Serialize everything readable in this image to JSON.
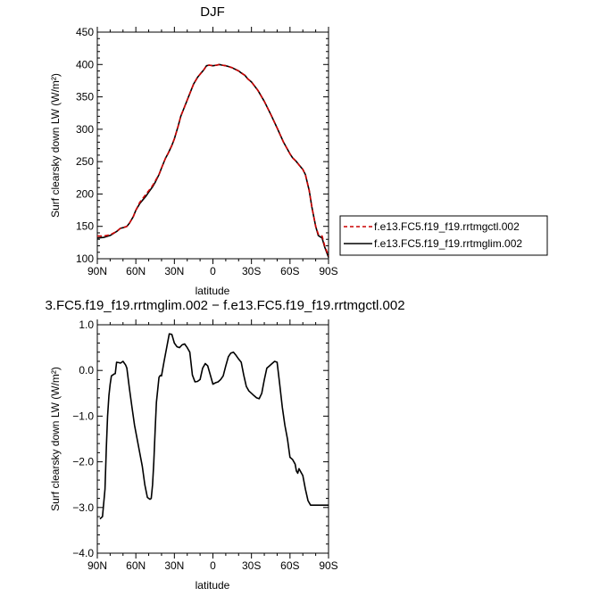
{
  "chart_data": [
    {
      "type": "line",
      "title": "DJF",
      "xlabel": "latitude",
      "ylabel": "Surf clearsky down LW (W/m²)",
      "ylim": [
        100,
        450
      ],
      "yticks": [
        "100",
        "150",
        "200",
        "250",
        "300",
        "350",
        "400",
        "450"
      ],
      "xlim": [
        90,
        -90
      ],
      "xticks": [
        "90N",
        "60N",
        "30N",
        "0",
        "30S",
        "60S",
        "90S"
      ],
      "legend_position": "right",
      "grid": false,
      "series": [
        {
          "name": "f.e13.FC5.f19_f19.rrtmgctl.002",
          "color": "#cc0000",
          "style": "dashed",
          "x": [
            90,
            85,
            80,
            75,
            72,
            70,
            67,
            65,
            62,
            60,
            57,
            55,
            52,
            50,
            47,
            45,
            42,
            40,
            37,
            35,
            32,
            30,
            27,
            25,
            22,
            20,
            17,
            15,
            12,
            10,
            7,
            5,
            3,
            0,
            -3,
            -5,
            -7,
            -10,
            -12,
            -15,
            -17,
            -20,
            -22,
            -25,
            -27,
            -30,
            -35,
            -40,
            -45,
            -50,
            -55,
            -60,
            -62,
            -65,
            -67,
            -70,
            -72,
            -75,
            -77,
            -80,
            -82,
            -85,
            -87,
            -90
          ],
          "values": [
            135,
            135,
            137,
            142,
            147,
            148,
            150,
            155,
            165,
            175,
            187,
            192,
            200,
            205,
            213,
            220,
            230,
            240,
            255,
            262,
            275,
            285,
            305,
            320,
            335,
            345,
            360,
            370,
            380,
            385,
            392,
            398,
            399,
            398,
            399,
            400,
            399,
            398,
            397,
            395,
            393,
            390,
            387,
            383,
            378,
            373,
            360,
            343,
            323,
            302,
            280,
            262,
            256,
            250,
            245,
            238,
            230,
            205,
            180,
            150,
            138,
            135,
            120,
            104
          ]
        },
        {
          "name": "f.e13.FC5.f19_f19.rrtmglim.002",
          "color": "#000000",
          "style": "solid",
          "x": [
            90,
            85,
            80,
            75,
            72,
            70,
            67,
            65,
            62,
            60,
            57,
            55,
            52,
            50,
            47,
            45,
            42,
            40,
            37,
            35,
            32,
            30,
            27,
            25,
            22,
            20,
            17,
            15,
            12,
            10,
            7,
            5,
            3,
            0,
            -3,
            -5,
            -7,
            -10,
            -12,
            -15,
            -17,
            -20,
            -22,
            -25,
            -27,
            -30,
            -35,
            -40,
            -45,
            -50,
            -55,
            -60,
            -62,
            -65,
            -67,
            -70,
            -72,
            -75,
            -77,
            -80,
            -82,
            -85,
            -87,
            -90
          ],
          "values": [
            132,
            133,
            136,
            142,
            147,
            148,
            150,
            155,
            165,
            175,
            185,
            190,
            197,
            203,
            211,
            218,
            230,
            240,
            255,
            262,
            275,
            285,
            305,
            320,
            335,
            345,
            360,
            370,
            380,
            385,
            392,
            398,
            399,
            398,
            399,
            400,
            399,
            398,
            397,
            395,
            393,
            390,
            387,
            383,
            378,
            373,
            360,
            343,
            323,
            302,
            280,
            262,
            256,
            250,
            245,
            238,
            230,
            205,
            180,
            150,
            136,
            132,
            118,
            102
          ]
        }
      ]
    },
    {
      "type": "line",
      "title": "3.FC5.f19_f19.rrtmglim.002 − f.e13.FC5.f19_f19.rrtmgctl.002",
      "xlabel": "latitude",
      "ylabel": "Surf clearsky down LW (W/m²)",
      "ylim": [
        -4.0,
        1.0
      ],
      "yticks": [
        "−4.0",
        "−3.0",
        "−2.0",
        "−1.0",
        "0.0",
        "1.0"
      ],
      "xlim": [
        90,
        -90
      ],
      "xticks": [
        "90N",
        "60N",
        "30N",
        "0",
        "30S",
        "60S",
        "90S"
      ],
      "grid": false,
      "series": [
        {
          "color": "#000000",
          "style": "solid",
          "x": [
            88,
            86,
            84,
            83,
            82,
            81,
            80,
            79,
            77,
            76,
            75,
            73,
            72,
            70,
            68,
            67,
            65,
            63,
            61,
            59,
            57,
            55,
            53,
            51,
            49,
            48,
            47,
            46,
            45,
            44,
            42,
            41,
            40,
            38,
            36,
            34,
            32,
            30,
            28,
            26,
            24,
            22,
            20,
            18,
            16,
            14,
            12,
            10,
            8,
            6,
            4,
            2,
            0,
            -2,
            -4,
            -6,
            -8,
            -10,
            -12,
            -14,
            -16,
            -18,
            -20,
            -22,
            -24,
            -26,
            -28,
            -30,
            -32,
            -34,
            -36,
            -38,
            -40,
            -42,
            -44,
            -46,
            -48,
            -50,
            -52,
            -54,
            -56,
            -58,
            -60,
            -62,
            -64,
            -65,
            -66,
            -67,
            -68,
            -70,
            -72,
            -74,
            -76,
            -78,
            -79,
            -80,
            -82,
            -84,
            -86,
            -88,
            -90
          ],
          "values": [
            -3.25,
            -3.2,
            -2.6,
            -1.7,
            -1.0,
            -0.55,
            -0.3,
            -0.12,
            -0.08,
            -0.07,
            0.18,
            0.17,
            0.16,
            0.2,
            0.12,
            0.05,
            -0.4,
            -0.8,
            -1.2,
            -1.5,
            -1.8,
            -2.1,
            -2.5,
            -2.78,
            -2.82,
            -2.8,
            -2.5,
            -2.0,
            -1.3,
            -0.7,
            -0.15,
            -0.11,
            -0.12,
            0.2,
            0.5,
            0.8,
            0.79,
            0.6,
            0.52,
            0.5,
            0.56,
            0.58,
            0.5,
            0.4,
            -0.1,
            -0.25,
            -0.24,
            -0.2,
            0.05,
            0.15,
            0.1,
            -0.1,
            -0.3,
            -0.27,
            -0.25,
            -0.2,
            -0.12,
            0.1,
            0.3,
            0.38,
            0.4,
            0.33,
            0.25,
            0.18,
            -0.1,
            -0.35,
            -0.45,
            -0.5,
            -0.55,
            -0.6,
            -0.62,
            -0.5,
            -0.2,
            0.05,
            0.1,
            0.15,
            0.2,
            0.18,
            -0.3,
            -0.8,
            -1.2,
            -1.5,
            -1.9,
            -1.95,
            -2.05,
            -2.2,
            -2.25,
            -2.15,
            -2.2,
            -2.3,
            -2.6,
            -2.85,
            -2.95,
            -2.95,
            -2.95,
            -2.95,
            -2.95,
            -2.95,
            -2.95,
            -2.95,
            -2.95
          ]
        }
      ]
    }
  ]
}
